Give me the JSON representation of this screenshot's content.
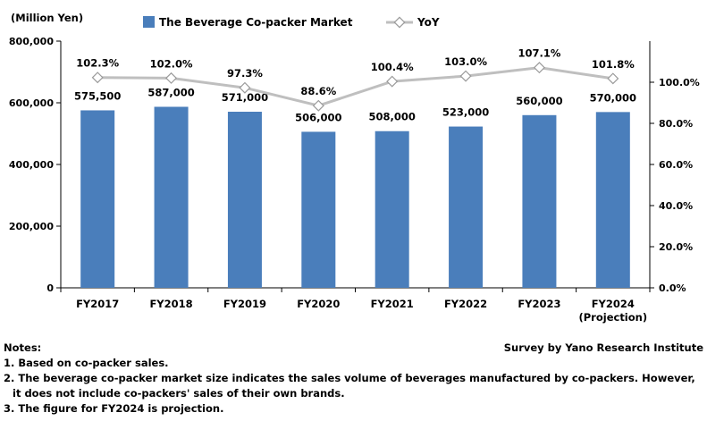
{
  "chart_data": {
    "type": "bar",
    "unit_label": "(Million Yen)",
    "categories": [
      "FY2017",
      "FY2018",
      "FY2019",
      "FY2020",
      "FY2021",
      "FY2022",
      "FY2023",
      "FY2024"
    ],
    "category_sublabels": [
      "",
      "",
      "",
      "",
      "",
      "",
      "",
      "(Projection)"
    ],
    "series": [
      {
        "name": "The Beverage Co-packer Market",
        "type": "bar",
        "axis": "left",
        "values": [
          575500,
          587000,
          571000,
          506000,
          508000,
          523000,
          560000,
          570000
        ],
        "value_labels": [
          "575,500",
          "587,000",
          "571,000",
          "506,000",
          "508,000",
          "523,000",
          "560,000",
          "570,000"
        ],
        "color": "#4a7ebb"
      },
      {
        "name": "YoY",
        "type": "line",
        "axis": "right",
        "values": [
          102.3,
          102.0,
          97.3,
          88.6,
          100.4,
          103.0,
          107.1,
          101.8
        ],
        "value_labels": [
          "102.3%",
          "102.0%",
          "97.3%",
          "88.6%",
          "100.4%",
          "103.0%",
          "107.1%",
          "101.8%"
        ],
        "color": "#bfbfbf"
      }
    ],
    "y_left": {
      "min": 0,
      "max": 800000,
      "ticks": [
        0,
        200000,
        400000,
        600000,
        800000
      ],
      "tick_labels": [
        "0",
        "200,000",
        "400,000",
        "600,000",
        "800,000"
      ]
    },
    "y_right": {
      "min": 0,
      "max": 120,
      "ticks": [
        0,
        20,
        40,
        60,
        80,
        100
      ],
      "tick_labels": [
        "0.0%",
        "20.0%",
        "40.0%",
        "60.0%",
        "80.0%",
        "100.0%"
      ]
    },
    "legend_position": "top",
    "grid": false
  },
  "notes": {
    "heading": "Notes:",
    "source": "Survey by Yano Research Institute",
    "lines": [
      "1. Based on co-packer sales.",
      "2. The beverage co-packer market size indicates the sales volume of beverages manufactured by co-packers. However,",
      "it does not include co-packers' sales of their own brands.",
      "3. The figure for FY2024 is projection."
    ]
  }
}
